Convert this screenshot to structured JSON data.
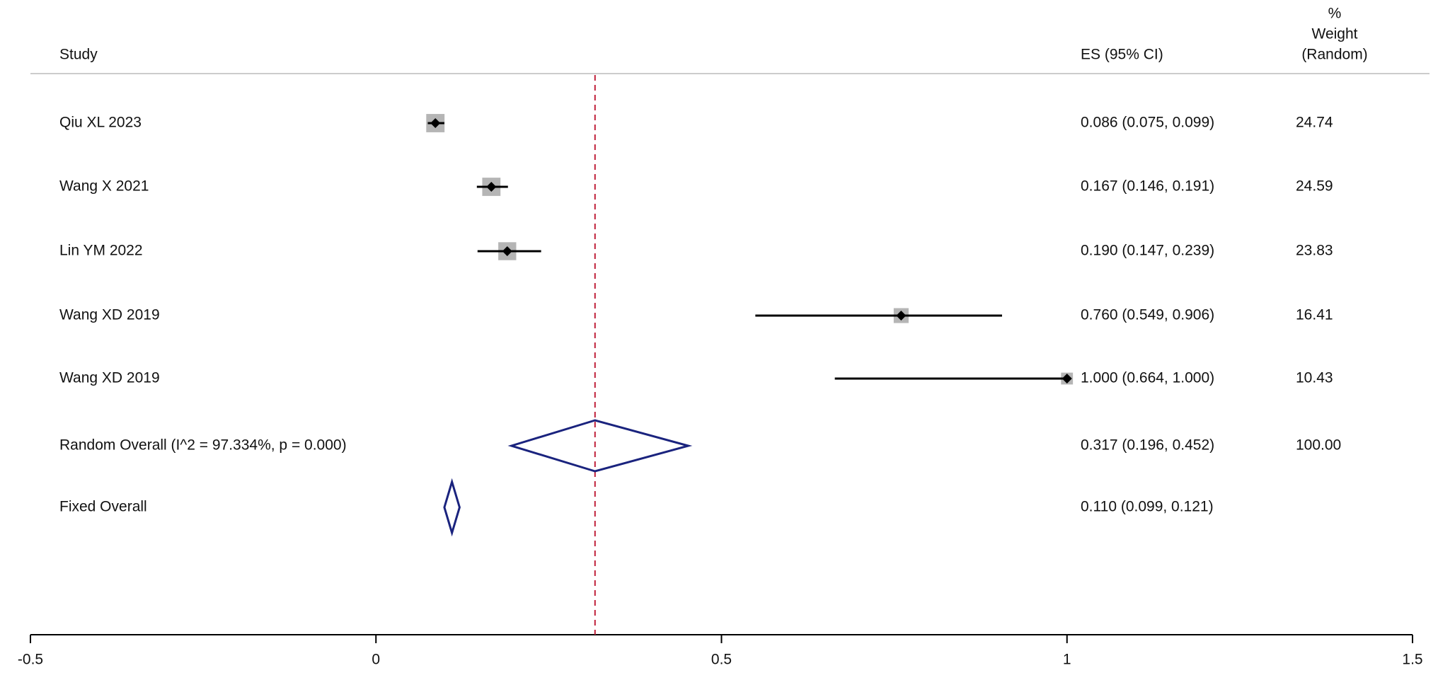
{
  "chart_data": {
    "type": "forest",
    "header_study": "Study",
    "header_es": "ES (95% CI)",
    "header_weight": [
      "%",
      "Weight",
      "(Random)"
    ],
    "studies": [
      {
        "name": "Qiu XL 2023",
        "es": 0.086,
        "lo": 0.075,
        "hi": 0.099,
        "es_ci": "0.086 (0.075, 0.099)",
        "weight": 24.74
      },
      {
        "name": "Wang X 2021",
        "es": 0.167,
        "lo": 0.146,
        "hi": 0.191,
        "es_ci": "0.167 (0.146, 0.191)",
        "weight": 24.59
      },
      {
        "name": "Lin YM 2022",
        "es": 0.19,
        "lo": 0.147,
        "hi": 0.239,
        "es_ci": "0.190 (0.147, 0.239)",
        "weight": 23.83
      },
      {
        "name": "Wang XD 2019",
        "es": 0.76,
        "lo": 0.549,
        "hi": 0.906,
        "es_ci": "0.760 (0.549, 0.906)",
        "weight": 16.41
      },
      {
        "name": "Wang XD 2019",
        "es": 1,
        "lo": 0.664,
        "hi": 1,
        "es_ci": "1.000 (0.664, 1.000)",
        "weight": 10.43
      }
    ],
    "overall": [
      {
        "name": "Random Overall  (I^2 = 97.334%, p = 0.000)",
        "es": 0.317,
        "lo": 0.196,
        "hi": 0.452,
        "es_ci": "0.317 (0.196, 0.452)",
        "weight": {
          "value": 100,
          "label": "100.00"
        }
      },
      {
        "name": "Fixed Overall",
        "es": 0.11,
        "lo": 0.099,
        "hi": 0.121,
        "es_ci": "0.110 (0.099, 0.121)"
      }
    ],
    "reference_line_color": "#c0203a",
    "diamond_color": "#1a237e",
    "box_color": "#b5b5b5",
    "xlim": [
      -0.5,
      1.5
    ],
    "xticks": [
      -0.5,
      0,
      0.5,
      1,
      1.5
    ]
  }
}
